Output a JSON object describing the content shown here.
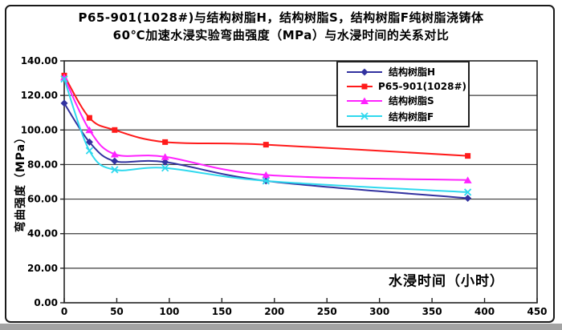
{
  "figure": {
    "title_line1": "P65-901(1028#)与结构树脂H，结构树脂S，结构树脂F纯树脂浇铸体",
    "title_line2": "60℃加速水浸实验弯曲强度（MPa）与水浸时间的关系对比",
    "y_axis_title": "弯曲强度（MPa）",
    "x_axis_title": "水浸时间（小时）"
  },
  "chart_data": {
    "type": "line",
    "title": "P65-901(1028#)与结构树脂H，结构树脂S，结构树脂F纯树脂浇铸体 60℃加速水浸实验弯曲强度（MPa）与水浸时间的关系对比",
    "xlabel": "水浸时间（小时）",
    "ylabel": "弯曲强度（MPa）",
    "x": [
      0,
      24,
      48,
      96,
      192,
      384
    ],
    "series": [
      {
        "name": "结构树脂H",
        "color": "#3232A0",
        "marker": "diamond",
        "values": [
          115.5,
          93,
          82,
          81.5,
          70.5,
          60.5
        ]
      },
      {
        "name": "P65-901(1028#)",
        "color": "#FF1A1A",
        "marker": "square",
        "values": [
          131.5,
          107,
          100,
          93,
          91.5,
          85
        ]
      },
      {
        "name": "结构树脂S",
        "color": "#FF22FF",
        "marker": "triangle",
        "values": [
          130.5,
          100,
          86,
          84.5,
          74,
          71
        ]
      },
      {
        "name": "结构树脂F",
        "color": "#2FD9EE",
        "marker": "x",
        "values": [
          129.5,
          88,
          77,
          78,
          70.5,
          64
        ]
      }
    ],
    "xlim": [
      0,
      450
    ],
    "ylim": [
      0,
      140
    ],
    "x_ticks": [
      0,
      50,
      100,
      150,
      200,
      250,
      300,
      350,
      400,
      450
    ],
    "y_ticks": [
      0,
      20,
      40,
      60,
      80,
      100,
      120,
      140
    ],
    "y_tick_decimals": 2,
    "grid": "horizontal",
    "legend_position": "top-right-inside",
    "smooth": true
  },
  "colors": {
    "background": "#FFFFFF",
    "frame_border": "#1A1A1A",
    "plot_border": "#222222",
    "gridline": "#3C3C3C",
    "bottom_strip": "#A3A3A3",
    "text": "#000000"
  }
}
